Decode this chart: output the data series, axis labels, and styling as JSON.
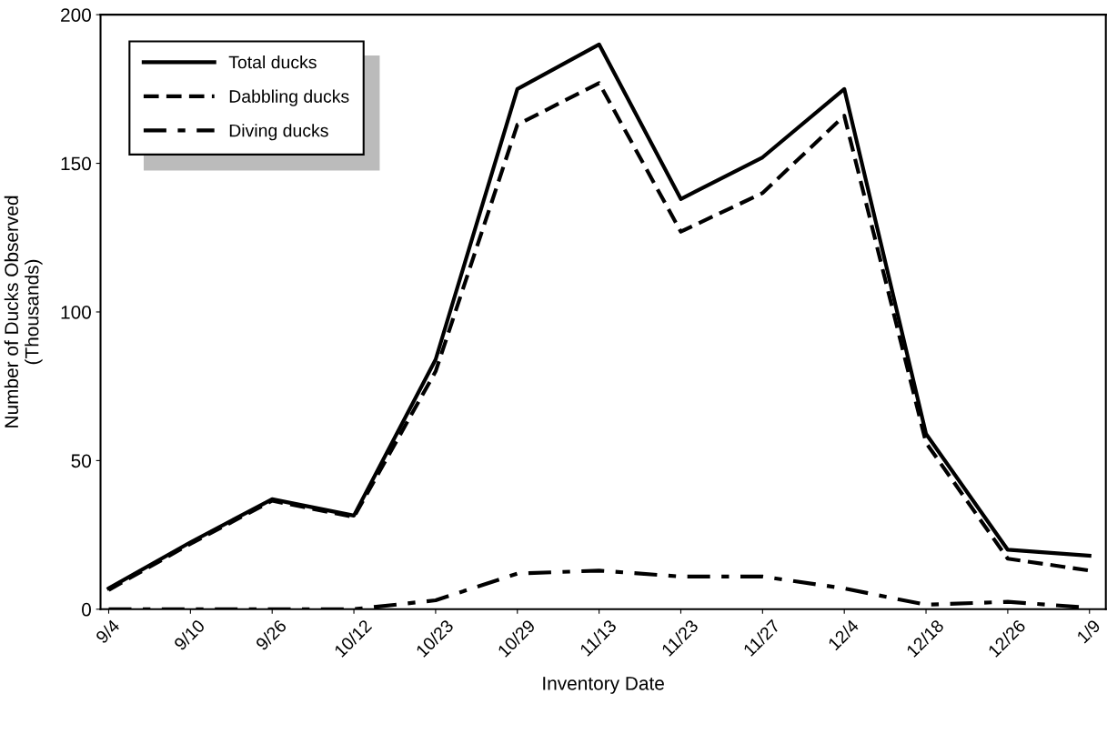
{
  "chart_data": {
    "type": "line",
    "xlabel": "Inventory Date",
    "ylabel": "Number of Ducks Observed\n(Thousands)",
    "categories": [
      "9/4",
      "9/10",
      "9/26",
      "10/12",
      "10/23",
      "10/29",
      "11/13",
      "11/23",
      "11/27",
      "12/4",
      "12/18",
      "12/26",
      "1/9"
    ],
    "series": [
      {
        "name": "Total ducks",
        "color": "#000000",
        "line_style": "solid",
        "values": [
          7,
          22.5,
          37,
          31.5,
          84,
          175,
          190,
          138,
          152,
          175,
          59,
          20,
          18
        ]
      },
      {
        "name": "Dabbling ducks",
        "color": "#000000",
        "line_style": "dashed",
        "values": [
          6.5,
          22,
          36.5,
          31,
          80,
          163,
          177,
          127,
          140,
          166,
          56,
          17,
          13
        ]
      },
      {
        "name": "Diving ducks",
        "color": "#000000",
        "line_style": "dashdot",
        "values": [
          0,
          0,
          0,
          0,
          3,
          12,
          13,
          11,
          11,
          7,
          1.5,
          2.5,
          0.5
        ]
      }
    ],
    "ylim": [
      0,
      200
    ],
    "yticks": [
      0,
      50,
      100,
      150,
      200
    ],
    "grid": false,
    "legend": "top left",
    "marker": "none"
  }
}
